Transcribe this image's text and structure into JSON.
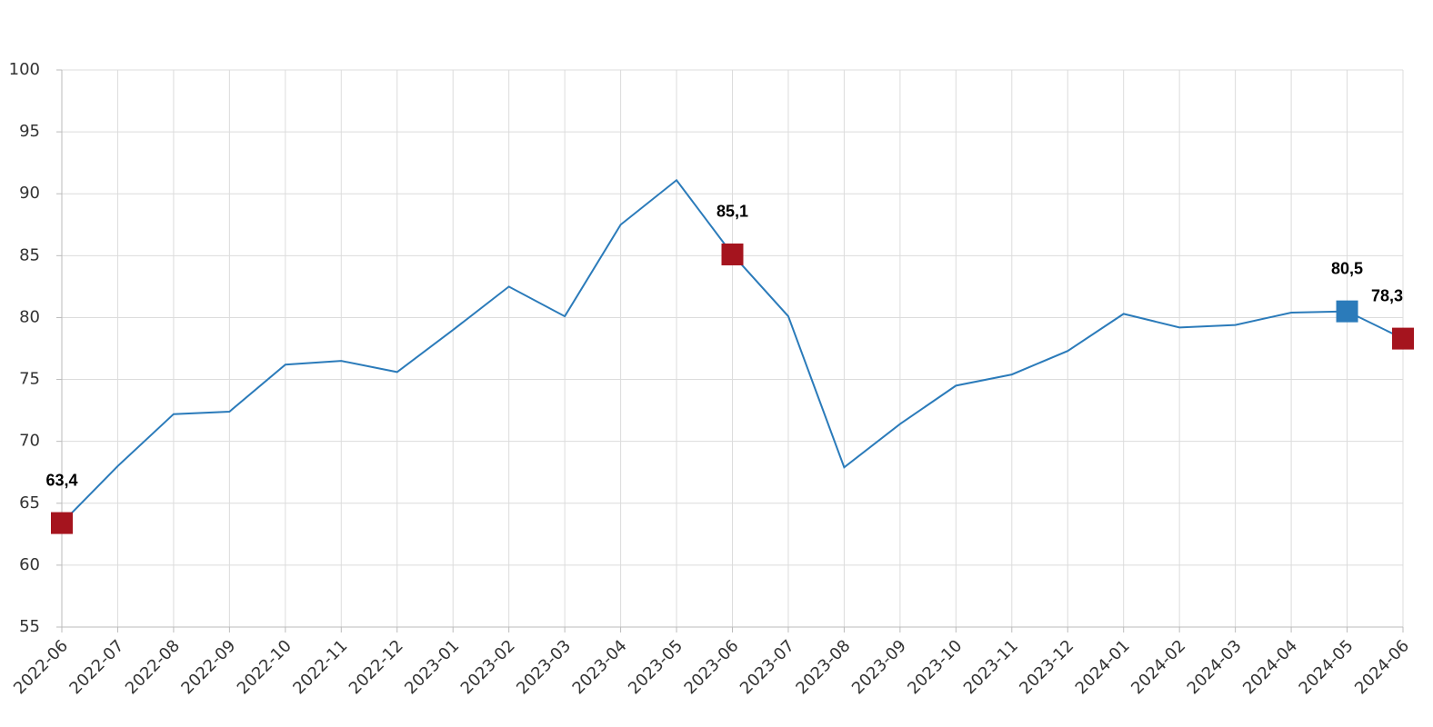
{
  "chart_data": {
    "type": "line",
    "categories": [
      "2022-06",
      "2022-07",
      "2022-08",
      "2022-09",
      "2022-10",
      "2022-11",
      "2022-12",
      "2023-01",
      "2023-02",
      "2023-03",
      "2023-04",
      "2023-05",
      "2023-06",
      "2023-07",
      "2023-08",
      "2023-09",
      "2023-10",
      "2023-11",
      "2023-12",
      "2024-01",
      "2024-02",
      "2024-03",
      "2024-04",
      "2024-05",
      "2024-06"
    ],
    "values": [
      63.4,
      68.0,
      72.2,
      72.4,
      76.2,
      76.5,
      75.6,
      79.0,
      82.5,
      80.1,
      87.5,
      91.1,
      85.1,
      80.1,
      67.9,
      71.4,
      74.5,
      75.4,
      77.3,
      80.3,
      79.2,
      79.4,
      80.4,
      80.5,
      78.3
    ],
    "value_labels": [
      "63,4",
      null,
      null,
      null,
      null,
      null,
      null,
      null,
      null,
      null,
      null,
      null,
      "85,1",
      null,
      null,
      null,
      null,
      null,
      null,
      null,
      null,
      null,
      null,
      "80,5",
      "78,3"
    ],
    "marker_colors": [
      "#a5141e",
      null,
      null,
      null,
      null,
      null,
      null,
      null,
      null,
      null,
      null,
      null,
      "#a5141e",
      null,
      null,
      null,
      null,
      null,
      null,
      null,
      null,
      null,
      null,
      "#2b7bba",
      "#a5141e"
    ],
    "color": "#2b7bba",
    "ylim": [
      55,
      100
    ],
    "yticks": [
      55,
      60,
      65,
      70,
      75,
      80,
      85,
      90,
      95,
      100
    ],
    "grid": true
  }
}
